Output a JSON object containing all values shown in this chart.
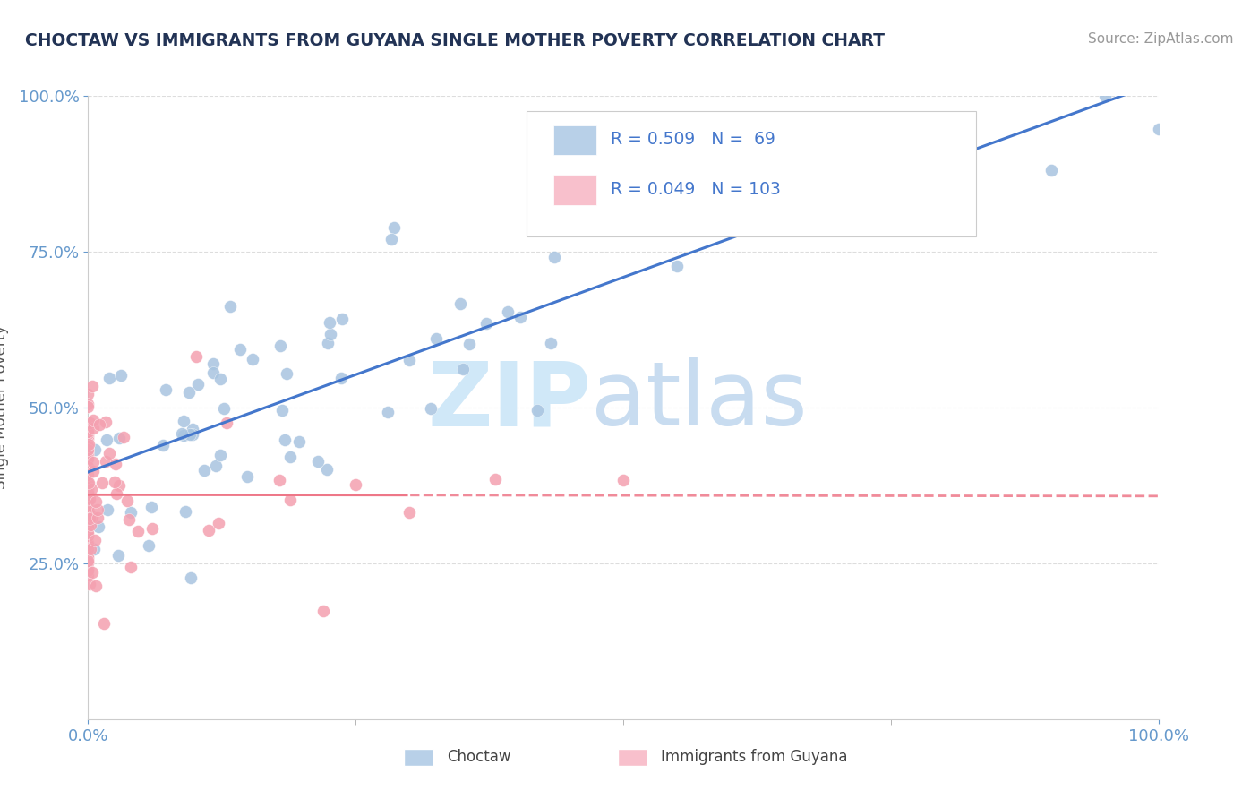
{
  "title": "CHOCTAW VS IMMIGRANTS FROM GUYANA SINGLE MOTHER POVERTY CORRELATION CHART",
  "source": "Source: ZipAtlas.com",
  "ylabel": "Single Mother Poverty",
  "blue_color": "#A8C4E0",
  "pink_color": "#F4A0B0",
  "blue_line_color": "#4477CC",
  "pink_line_color": "#EE7788",
  "legend_blue_fill": "#B8D0E8",
  "legend_pink_fill": "#F8C0CC",
  "watermark_zip_color": "#D0E8F8",
  "watermark_atlas_color": "#C8DCF0",
  "grid_color": "#DDDDDD",
  "tick_color": "#6699CC",
  "title_color": "#223355",
  "source_color": "#999999",
  "ylabel_color": "#555555",
  "choctaw_seed": 12345,
  "guyana_seed": 67890,
  "blue_intercept": 0.4,
  "blue_slope": 0.6,
  "blue_noise": 0.1,
  "pink_intercept": 0.36,
  "pink_slope": 0.05,
  "pink_noise": 0.09,
  "n_choctaw": 69,
  "n_guyana": 103
}
